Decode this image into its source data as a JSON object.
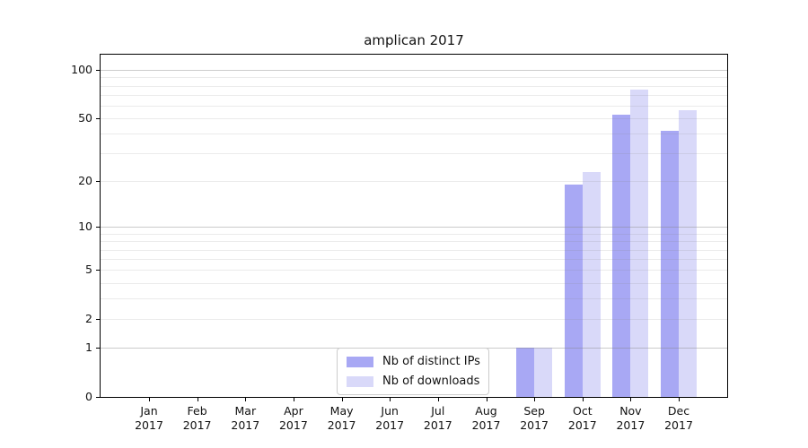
{
  "title": "amplican 2017",
  "chart_data": {
    "type": "bar",
    "title": "amplican 2017",
    "categories": [
      "Jan 2017",
      "Feb 2017",
      "Mar 2017",
      "Apr 2017",
      "May 2017",
      "Jun 2017",
      "Jul 2017",
      "Aug 2017",
      "Sep 2017",
      "Oct 2017",
      "Nov 2017",
      "Dec 2017"
    ],
    "series": [
      {
        "name": "Nb of distinct IPs",
        "color": "#a8a8f4",
        "values": [
          0,
          0,
          0,
          0,
          0,
          0,
          0,
          0,
          1,
          19,
          53,
          42
        ]
      },
      {
        "name": "Nb of downloads",
        "color": "#d9d9f9",
        "values": [
          0,
          0,
          0,
          0,
          0,
          0,
          0,
          0,
          1,
          23,
          76,
          56
        ]
      }
    ],
    "y_ticks": [
      0,
      1,
      2,
      5,
      10,
      20,
      50,
      100
    ],
    "y_scale": "log10(1+x)",
    "ylim": [
      0,
      125
    ],
    "xlabel": "",
    "ylabel": "",
    "grid": true,
    "legend_position": "inside lower center"
  }
}
